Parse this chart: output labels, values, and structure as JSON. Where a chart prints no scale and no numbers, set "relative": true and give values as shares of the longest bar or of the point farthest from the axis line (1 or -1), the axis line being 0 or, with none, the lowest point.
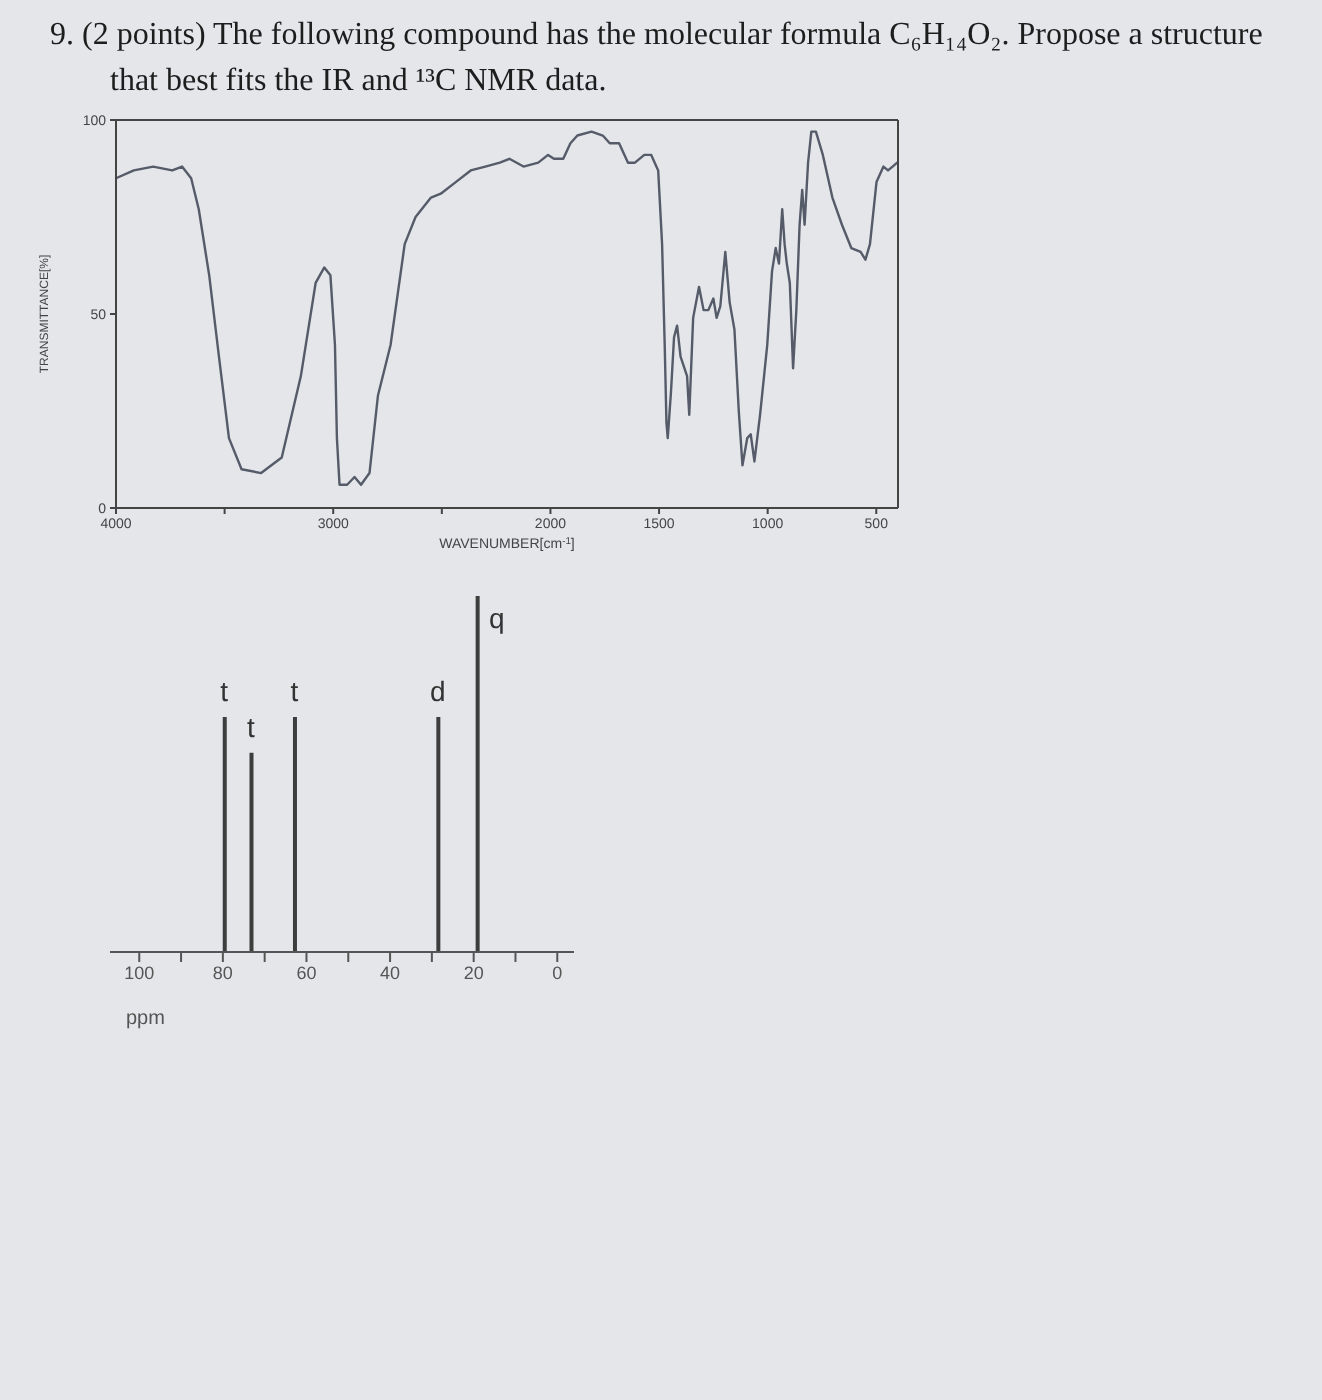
{
  "chart_data": [
    {
      "type": "line",
      "title": "9. (2 points) The following compound has the molecular formula C₆H₁₄O₂. Propose a structure that best fits the IR and ¹³C NMR data.",
      "xlabel": "WAVENUMBER[cm$^{-1}$]",
      "ylabel": "TRANSMITTANCE[%]",
      "xlim": [
        4000,
        400
      ],
      "xticks": [
        4000,
        {
          "value": 3500,
          "label": null
        },
        3000,
        {
          "value": 2500,
          "label": null
        },
        2000,
        1500,
        1000,
        500
      ],
      "ylim": [
        0,
        100
      ],
      "yticks": [
        0,
        50,
        100
      ],
      "marker": "none",
      "line_style": "solid",
      "color": "#555b68",
      "x": [
        4000,
        3918,
        3829,
        3741,
        3696,
        3654,
        3619,
        3571,
        3526,
        3480,
        3422,
        3332,
        3237,
        3149,
        3081,
        3041,
        3013,
        2992,
        2983,
        2971,
        2936,
        2902,
        2872,
        2833,
        2794,
        2736,
        2671,
        2621,
        2550,
        2505,
        2436,
        2367,
        2300,
        2233,
        2189,
        2124,
        2056,
        2011,
        1984,
        1941,
        1908,
        1876,
        1811,
        1759,
        1727,
        1684,
        1643,
        1611,
        1568,
        1536,
        1504,
        1486,
        1474,
        1466,
        1460,
        1445,
        1431,
        1417,
        1401,
        1371,
        1361,
        1343,
        1316,
        1295,
        1273,
        1250,
        1235,
        1218,
        1195,
        1175,
        1153,
        1133,
        1116,
        1094,
        1078,
        1061,
        1035,
        1002,
        980,
        963,
        948,
        933,
        922,
        912,
        898,
        883,
        868,
        853,
        841,
        830,
        814,
        799,
        778,
        746,
        702,
        658,
        615,
        572,
        550,
        529,
        499,
        467,
        446,
        425,
        404
      ],
      "values": [
        85,
        87,
        88,
        87,
        88,
        85,
        77,
        60,
        39,
        18,
        10,
        9,
        13,
        34,
        58,
        62,
        60,
        42,
        18,
        6,
        6,
        8,
        6,
        9,
        29,
        42,
        68,
        75,
        80,
        81,
        84,
        87,
        88,
        89,
        90,
        88,
        89,
        91,
        90,
        90,
        94,
        96,
        97,
        96,
        94,
        94,
        89,
        89,
        91,
        91,
        87,
        68,
        42,
        22,
        18,
        30,
        44,
        47,
        39,
        34,
        24,
        49,
        57,
        51,
        51,
        54,
        49,
        52,
        66,
        53,
        46,
        25,
        11,
        18,
        19,
        12,
        24,
        42,
        61,
        67,
        63,
        77,
        68,
        63,
        58,
        36,
        51,
        73,
        82,
        73,
        89,
        97,
        97,
        91,
        80,
        73,
        67,
        66,
        64,
        68,
        84,
        88,
        87,
        88,
        89
      ]
    },
    {
      "type": "bar",
      "xlabel": "ppm",
      "xlim": [
        107,
        -4
      ],
      "xticks": [
        100,
        {
          "value": 90,
          "label": null
        },
        80,
        {
          "value": 70,
          "label": null
        },
        60,
        {
          "value": 50,
          "label": null
        },
        40,
        {
          "value": 30,
          "label": null
        },
        20,
        {
          "value": 10,
          "label": null
        },
        0
      ],
      "relative": true,
      "color": "#3d3d3d",
      "x": [
        79.7,
        73.3,
        62.9,
        28.6,
        19.2
      ],
      "values": [
        0.66,
        0.56,
        0.66,
        0.66,
        1
      ],
      "annotations": [
        {
          "text": "t",
          "x": 79.7,
          "y": 0.66
        },
        {
          "text": "t",
          "x": 73.3,
          "y": 0.56
        },
        {
          "text": "t",
          "x": 62.9,
          "y": 0.66
        },
        {
          "text": "d",
          "x": 28.6,
          "y": 0.66
        },
        {
          "text": "q",
          "x": 19.2,
          "y": 1
        }
      ]
    }
  ]
}
